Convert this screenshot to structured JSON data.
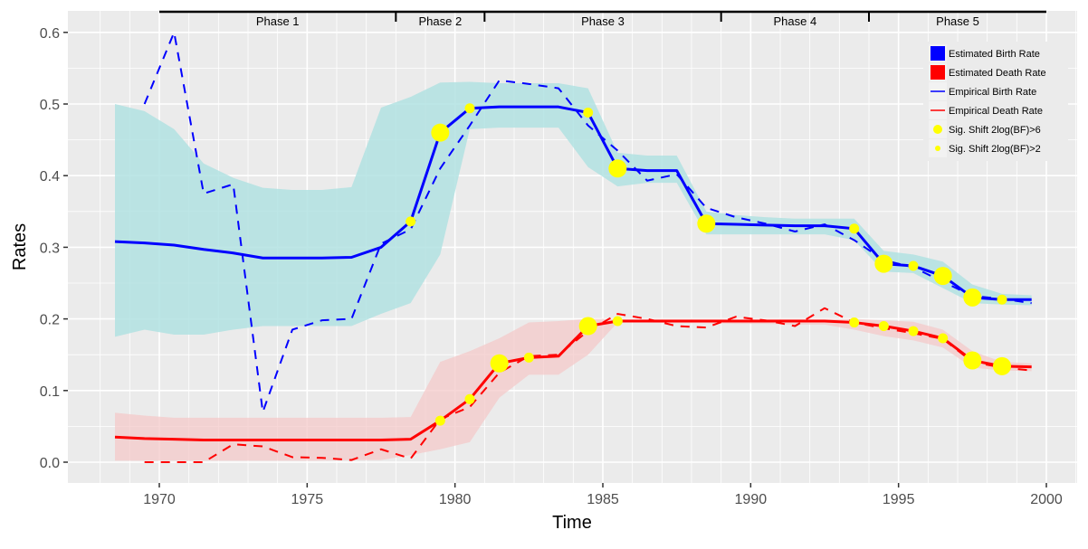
{
  "chart_data": {
    "type": "line",
    "title": "",
    "xlabel": "Time",
    "ylabel": "Rates",
    "xlim": [
      1967.8,
      2001
    ],
    "ylim": [
      -0.03,
      0.6
    ],
    "xticks": [
      1970,
      1975,
      1980,
      1985,
      1990,
      1995,
      2000
    ],
    "yticks": [
      0.0,
      0.1,
      0.2,
      0.3,
      0.4,
      0.5,
      0.6
    ],
    "ytick_labels": [
      "0.0",
      "0.1",
      "0.2",
      "0.3",
      "0.4",
      "0.5",
      "0.6"
    ],
    "grid": true,
    "legend_position": "top-right",
    "colors": {
      "birth": "#0000FF",
      "death": "#FF0000",
      "birth_band": "#B2E2E2",
      "death_band": "#F4CACA",
      "shift": "#FFFF00",
      "panel": "#EBEBEB"
    },
    "phases": [
      {
        "label": "Phase 1",
        "start": 1970,
        "end": 1978
      },
      {
        "label": "Phase 2",
        "start": 1978,
        "end": 1981
      },
      {
        "label": "Phase 3",
        "start": 1981,
        "end": 1989
      },
      {
        "label": "Phase 4",
        "start": 1989,
        "end": 1994
      },
      {
        "label": "Phase 5",
        "start": 1994,
        "end": 2000
      }
    ],
    "x": [
      1968.5,
      1969.5,
      1970.5,
      1971.5,
      1972.5,
      1973.5,
      1974.5,
      1975.5,
      1976.5,
      1977.5,
      1978.5,
      1979.5,
      1980.5,
      1981.5,
      1982.5,
      1983.5,
      1984.5,
      1985.5,
      1986.5,
      1987.5,
      1988.5,
      1989.5,
      1990.5,
      1991.5,
      1992.5,
      1993.5,
      1994.5,
      1995.5,
      1996.5,
      1997.5,
      1998.5,
      1999.5
    ],
    "series": [
      {
        "name": "Estimated Birth Rate",
        "kind": "estimate",
        "color": "#0000FF",
        "values": [
          0.308,
          0.306,
          0.303,
          0.297,
          0.292,
          0.285,
          0.285,
          0.285,
          0.286,
          0.3,
          0.336,
          0.46,
          0.494,
          0.496,
          0.496,
          0.496,
          0.488,
          0.41,
          0.407,
          0.407,
          0.333,
          0.332,
          0.331,
          0.33,
          0.33,
          0.326,
          0.277,
          0.274,
          0.26,
          0.23,
          0.227,
          0.227
        ],
        "upper": [
          0.5,
          0.49,
          0.465,
          0.417,
          0.397,
          0.383,
          0.38,
          0.38,
          0.384,
          0.495,
          0.51,
          0.53,
          0.531,
          0.529,
          0.529,
          0.529,
          0.522,
          0.432,
          0.428,
          0.428,
          0.35,
          0.345,
          0.342,
          0.34,
          0.34,
          0.34,
          0.295,
          0.29,
          0.28,
          0.248,
          0.235,
          0.233
        ],
        "lower": [
          0.175,
          0.185,
          0.178,
          0.178,
          0.185,
          0.19,
          0.19,
          0.19,
          0.19,
          0.207,
          0.222,
          0.29,
          0.465,
          0.467,
          0.467,
          0.467,
          0.412,
          0.385,
          0.39,
          0.39,
          0.318,
          0.318,
          0.318,
          0.318,
          0.318,
          0.31,
          0.266,
          0.264,
          0.243,
          0.222,
          0.22,
          0.219
        ]
      },
      {
        "name": "Estimated Death Rate",
        "kind": "estimate",
        "color": "#FF0000",
        "values": [
          0.035,
          0.033,
          0.032,
          0.031,
          0.031,
          0.031,
          0.031,
          0.031,
          0.031,
          0.031,
          0.032,
          0.058,
          0.088,
          0.138,
          0.146,
          0.148,
          0.19,
          0.197,
          0.197,
          0.197,
          0.197,
          0.197,
          0.197,
          0.197,
          0.197,
          0.195,
          0.19,
          0.183,
          0.173,
          0.142,
          0.134,
          0.133
        ],
        "upper": [
          0.069,
          0.065,
          0.062,
          0.062,
          0.062,
          0.062,
          0.062,
          0.062,
          0.062,
          0.062,
          0.063,
          0.14,
          0.155,
          0.173,
          0.195,
          0.197,
          0.2,
          0.2,
          0.2,
          0.2,
          0.2,
          0.2,
          0.2,
          0.2,
          0.2,
          0.2,
          0.198,
          0.196,
          0.185,
          0.155,
          0.14,
          0.138
        ],
        "lower": [
          0.002,
          0.002,
          0.002,
          0.002,
          0.002,
          0.002,
          0.002,
          0.002,
          0.003,
          0.003,
          0.01,
          0.018,
          0.028,
          0.09,
          0.122,
          0.122,
          0.15,
          0.195,
          0.195,
          0.194,
          0.194,
          0.193,
          0.193,
          0.192,
          0.192,
          0.185,
          0.176,
          0.17,
          0.16,
          0.132,
          0.128,
          0.127
        ]
      },
      {
        "name": "Empirical Birth Rate",
        "kind": "empirical",
        "color": "#0000FF",
        "values": [
          null,
          0.5,
          0.6,
          0.375,
          0.388,
          0.07,
          0.185,
          0.198,
          0.2,
          0.305,
          0.325,
          0.41,
          0.47,
          0.533,
          0.528,
          0.522,
          0.47,
          0.435,
          0.393,
          0.402,
          0.355,
          0.342,
          0.333,
          0.322,
          0.332,
          0.31,
          0.282,
          0.272,
          0.252,
          0.232,
          0.228,
          0.222
        ]
      },
      {
        "name": "Empirical Death Rate",
        "kind": "empirical",
        "color": "#FF0000",
        "values": [
          null,
          0.0,
          0.0,
          0.0,
          0.025,
          0.022,
          0.007,
          0.006,
          0.003,
          0.018,
          0.005,
          0.06,
          0.077,
          0.125,
          0.148,
          0.15,
          0.183,
          0.207,
          0.2,
          0.19,
          0.188,
          0.203,
          0.198,
          0.19,
          0.215,
          0.195,
          0.187,
          0.18,
          0.172,
          0.14,
          0.132,
          0.128
        ]
      }
    ],
    "shifts": {
      "birth": [
        {
          "x": 1978.5,
          "level": "2"
        },
        {
          "x": 1979.5,
          "level": "6"
        },
        {
          "x": 1980.5,
          "level": "2"
        },
        {
          "x": 1984.5,
          "level": "2"
        },
        {
          "x": 1985.5,
          "level": "6"
        },
        {
          "x": 1988.5,
          "level": "6"
        },
        {
          "x": 1993.5,
          "level": "2"
        },
        {
          "x": 1994.5,
          "level": "6"
        },
        {
          "x": 1995.5,
          "level": "2"
        },
        {
          "x": 1996.5,
          "level": "6"
        },
        {
          "x": 1997.5,
          "level": "6"
        },
        {
          "x": 1998.5,
          "level": "2"
        }
      ],
      "death": [
        {
          "x": 1979.5,
          "level": "2"
        },
        {
          "x": 1980.5,
          "level": "2"
        },
        {
          "x": 1981.5,
          "level": "6"
        },
        {
          "x": 1982.5,
          "level": "2"
        },
        {
          "x": 1984.5,
          "level": "6"
        },
        {
          "x": 1985.5,
          "level": "2"
        },
        {
          "x": 1993.5,
          "level": "2"
        },
        {
          "x": 1994.5,
          "level": "2"
        },
        {
          "x": 1995.5,
          "level": "2"
        },
        {
          "x": 1996.5,
          "level": "2"
        },
        {
          "x": 1997.5,
          "level": "6"
        },
        {
          "x": 1998.5,
          "level": "6"
        }
      ]
    },
    "legend": [
      {
        "label": "Estimated Birth Rate",
        "key": "fill",
        "color": "#0000FF"
      },
      {
        "label": "Estimated Death Rate",
        "key": "fill",
        "color": "#FF0000"
      },
      {
        "label": "Empirical Birth Rate",
        "key": "line",
        "color": "#0000FF"
      },
      {
        "label": "Empirical Death Rate",
        "key": "line",
        "color": "#FF0000"
      },
      {
        "label": "Sig. Shift 2log(BF)>6",
        "key": "bigdot",
        "color": "#FFFF00"
      },
      {
        "label": "Sig. Shift 2log(BF)>2",
        "key": "smalldot",
        "color": "#FFFF00"
      }
    ]
  }
}
